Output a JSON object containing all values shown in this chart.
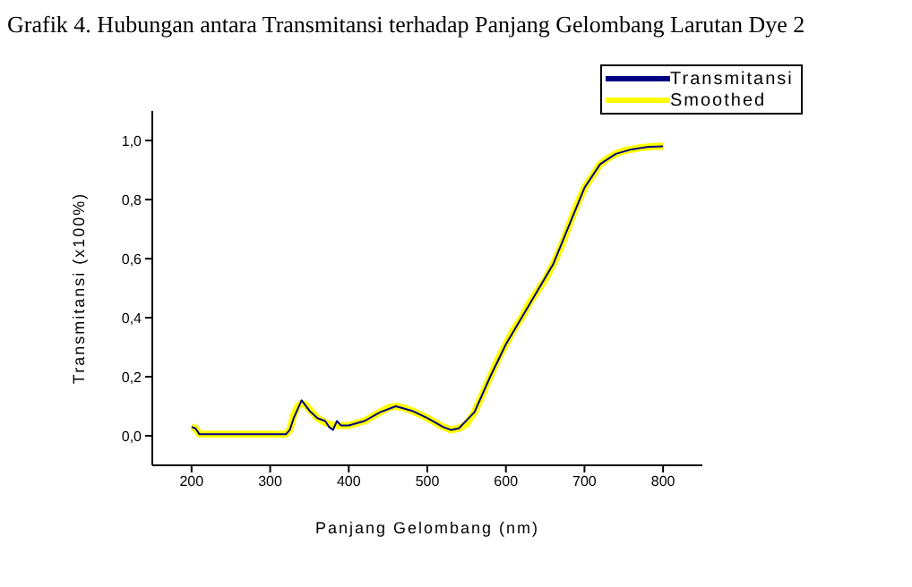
{
  "chart_data": {
    "type": "line",
    "title": "Grafik 4. Hubungan antara Transmitansi terhadap Panjang Gelombang Larutan Dye 2",
    "xlabel": "Panjang Gelombang (nm)",
    "ylabel": "Transmitansi (x100%)",
    "xlim": [
      150,
      850
    ],
    "xticks": [
      200,
      300,
      400,
      500,
      600,
      700,
      800
    ],
    "ylim": [
      -0.1,
      1.1
    ],
    "yticks": [
      {
        "value": 0,
        "label": "0,0"
      },
      {
        "value": 0.2,
        "label": "0,2"
      },
      {
        "value": 0.4,
        "label": "0,4"
      },
      {
        "value": 0.6,
        "label": "0,6"
      },
      {
        "value": 0.8,
        "label": "0,8"
      },
      {
        "value": 1,
        "label": "1,0"
      }
    ],
    "grid": false,
    "legend": "top right",
    "marker": "none",
    "line_style": "solid",
    "series": [
      {
        "name": "Transmitansi",
        "color": "#000080",
        "x": [
          200,
          205,
          210,
          250,
          300,
          320,
          325,
          330,
          340,
          350,
          360,
          370,
          375,
          380,
          385,
          390,
          400,
          420,
          440,
          460,
          480,
          500,
          520,
          530,
          540,
          560,
          580,
          600,
          620,
          640,
          660,
          680,
          700,
          720,
          740,
          760,
          780,
          800
        ],
        "values": [
          0.03,
          0.025,
          0.005,
          0.005,
          0.005,
          0.005,
          0.02,
          0.06,
          0.12,
          0.085,
          0.06,
          0.05,
          0.03,
          0.02,
          0.05,
          0.035,
          0.035,
          0.05,
          0.08,
          0.1,
          0.085,
          0.06,
          0.03,
          0.02,
          0.025,
          0.08,
          0.2,
          0.31,
          0.4,
          0.49,
          0.58,
          0.71,
          0.84,
          0.92,
          0.955,
          0.97,
          0.978,
          0.98
        ]
      },
      {
        "name": "Smoothed",
        "color": "#ffff00",
        "x": [
          200,
          205,
          210,
          250,
          300,
          320,
          325,
          330,
          335,
          340,
          345,
          350,
          360,
          370,
          380,
          390,
          400,
          420,
          440,
          450,
          460,
          470,
          480,
          500,
          520,
          530,
          540,
          550,
          560,
          570,
          580,
          590,
          600,
          610,
          620,
          630,
          640,
          650,
          660,
          670,
          680,
          690,
          700,
          710,
          720,
          730,
          740,
          750,
          760,
          770,
          780,
          790,
          800
        ],
        "values": [
          0.03,
          0.025,
          0.005,
          0.005,
          0.005,
          0.005,
          0.02,
          0.07,
          0.1,
          0.11,
          0.105,
          0.09,
          0.06,
          0.045,
          0.035,
          0.035,
          0.035,
          0.05,
          0.08,
          0.095,
          0.1,
          0.095,
          0.085,
          0.06,
          0.03,
          0.02,
          0.025,
          0.04,
          0.08,
          0.14,
          0.2,
          0.26,
          0.31,
          0.36,
          0.4,
          0.45,
          0.49,
          0.53,
          0.58,
          0.64,
          0.71,
          0.78,
          0.84,
          0.88,
          0.92,
          0.94,
          0.955,
          0.965,
          0.97,
          0.975,
          0.978,
          0.98,
          0.98
        ]
      }
    ]
  }
}
